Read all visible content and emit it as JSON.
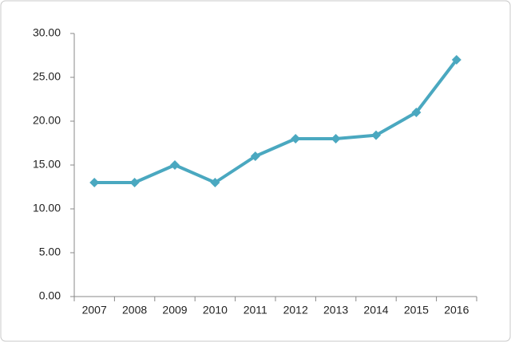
{
  "chart_data": {
    "type": "line",
    "categories": [
      "2007",
      "2008",
      "2009",
      "2010",
      "2011",
      "2012",
      "2013",
      "2014",
      "2015",
      "2016"
    ],
    "values": [
      13,
      13,
      15,
      13,
      16,
      18,
      18,
      18.4,
      21,
      27
    ],
    "color": "#4aa8c0",
    "ylim": [
      0,
      30
    ],
    "yticks": [
      {
        "value": 0,
        "label": "0.00"
      },
      {
        "value": 5,
        "label": "5.00"
      },
      {
        "value": 10,
        "label": "10.00"
      },
      {
        "value": 15,
        "label": "15.00"
      },
      {
        "value": 20,
        "label": "20.00"
      },
      {
        "value": 25,
        "label": "25.00"
      },
      {
        "value": 30,
        "label": "30.00"
      }
    ]
  }
}
